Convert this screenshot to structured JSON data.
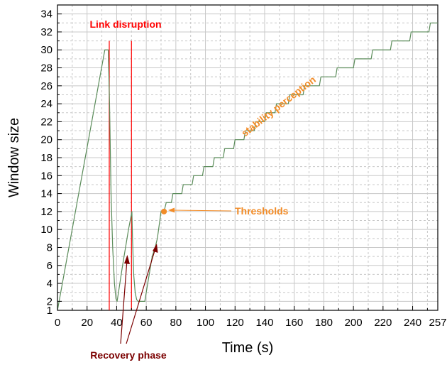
{
  "chart_data": {
    "type": "line",
    "xlabel": "Time (s)",
    "ylabel": "Window size",
    "xlim": [
      0,
      257
    ],
    "ylim": [
      1,
      35
    ],
    "x_ticks": [
      0,
      20,
      40,
      60,
      80,
      100,
      120,
      140,
      160,
      180,
      200,
      220,
      240,
      257
    ],
    "x_tick_labels": [
      "0",
      "20",
      "40",
      "60",
      "80",
      "100",
      "120",
      "140",
      "160",
      "180",
      "200",
      "220",
      "240",
      "257"
    ],
    "y_ticks": [
      1,
      2,
      4,
      6,
      8,
      10,
      12,
      14,
      16,
      18,
      20,
      22,
      24,
      26,
      28,
      30,
      32,
      34
    ],
    "y_tick_labels": [
      "1",
      "2",
      "4",
      "6",
      "8",
      "10",
      "12",
      "14",
      "16",
      "18",
      "20",
      "22",
      "24",
      "26",
      "28",
      "30",
      "32",
      "34"
    ],
    "grid": true,
    "series": [
      {
        "color": "#5b8c5a",
        "points": [
          [
            0,
            1
          ],
          [
            32,
            30
          ],
          [
            34.3,
            30
          ],
          [
            35.2,
            24
          ],
          [
            36.2,
            14
          ],
          [
            37.3,
            8
          ],
          [
            38.5,
            4
          ],
          [
            39.5,
            2.3
          ],
          [
            40.3,
            2
          ],
          [
            44,
            6
          ],
          [
            48,
            10
          ],
          [
            50.3,
            12
          ],
          [
            50.7,
            9
          ],
          [
            51.5,
            5
          ],
          [
            52.5,
            3
          ],
          [
            53.5,
            2.2
          ],
          [
            54.5,
            2
          ],
          [
            59,
            2
          ],
          [
            62,
            5
          ],
          [
            64,
            7
          ],
          [
            66,
            8
          ],
          [
            67.5,
            9
          ],
          [
            70,
            12
          ],
          [
            72,
            12
          ],
          [
            73.5,
            13
          ],
          [
            77,
            13
          ],
          [
            78,
            14
          ],
          [
            84,
            14
          ],
          [
            85,
            15
          ],
          [
            91,
            15
          ],
          [
            92,
            16
          ],
          [
            98,
            16
          ],
          [
            99,
            17
          ],
          [
            105,
            17
          ],
          [
            106,
            18
          ],
          [
            112,
            18
          ],
          [
            113,
            19
          ],
          [
            119,
            19
          ],
          [
            120,
            20
          ],
          [
            126,
            20
          ],
          [
            127,
            21
          ],
          [
            133,
            21
          ],
          [
            134,
            22
          ],
          [
            140,
            22
          ],
          [
            141,
            23
          ],
          [
            147,
            23
          ],
          [
            148,
            24
          ],
          [
            156,
            24
          ],
          [
            157,
            25
          ],
          [
            166,
            25
          ],
          [
            167,
            26
          ],
          [
            177,
            26
          ],
          [
            178,
            27
          ],
          [
            188,
            27
          ],
          [
            189,
            28
          ],
          [
            200,
            28
          ],
          [
            201,
            29
          ],
          [
            212,
            29
          ],
          [
            213,
            30
          ],
          [
            225,
            30
          ],
          [
            226,
            31
          ],
          [
            238,
            31
          ],
          [
            239,
            32
          ],
          [
            251,
            32
          ],
          [
            252,
            33
          ],
          [
            257,
            33
          ]
        ]
      }
    ],
    "markers": [
      {
        "x": 72,
        "y": 12,
        "color": "#f28c28"
      }
    ],
    "vlines": [
      {
        "x": 35,
        "ymax": 31,
        "color": "#ff0000"
      },
      {
        "x": 50,
        "ymax": 31,
        "color": "#ff0000"
      }
    ],
    "annotations": {
      "link_disruption": {
        "text": "Link disruption",
        "color": "#ff0000"
      },
      "thresholds": {
        "text": "Thresholds",
        "color": "#f28c28"
      },
      "stability": {
        "text": "stability perception",
        "color": "#f28c28"
      },
      "recovery": {
        "text": "Recovery phase",
        "color": "#7b0000"
      }
    }
  }
}
